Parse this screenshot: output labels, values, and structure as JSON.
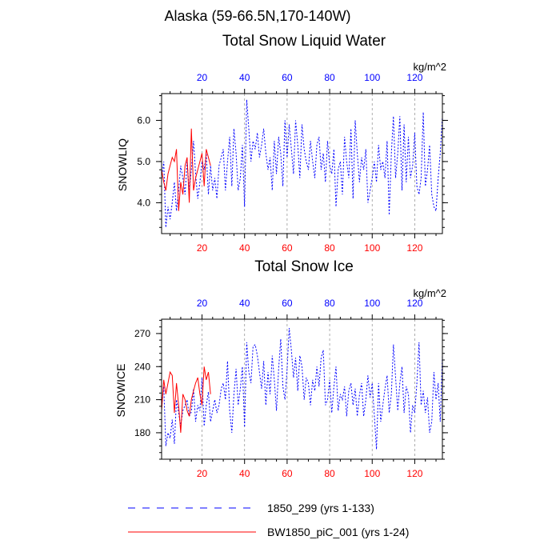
{
  "title": "Alaska (59-66.5N,170-140W)",
  "colors": {
    "control": "#0000ff",
    "experiment": "#ff0000",
    "grid": "#999999"
  },
  "legend": [
    {
      "label": "1850_299 (yrs 1-133)",
      "color": "#0000ff",
      "style": "dashed"
    },
    {
      "label": "BW1850_piC_001 (yrs 1-24)",
      "color": "#ff0000",
      "style": "solid"
    }
  ],
  "chart_data": [
    {
      "type": "line",
      "title": "Total Snow Liquid Water",
      "units": "kg/m^2",
      "ylabel": "SNOWLIQ",
      "xlim": [
        1,
        133
      ],
      "ylim": [
        3.25,
        6.65
      ],
      "yticks": [
        4.0,
        5.0,
        6.0
      ],
      "ytick_labels": [
        "4.0",
        "5.0",
        "6.0"
      ],
      "xticks": [
        20,
        40,
        60,
        80,
        100,
        120
      ],
      "grid": "vertical dashed at x ticks",
      "series": [
        {
          "name": "1850_299 (yrs 1-133)",
          "color": "#0000ff",
          "style": "dashed",
          "x_start": 1,
          "values": [
            4.6,
            5.0,
            3.4,
            3.9,
            3.6,
            4.0,
            4.5,
            3.8,
            4.3,
            4.9,
            4.6,
            4.2,
            5.0,
            4.3,
            4.8,
            5.5,
            4.7,
            4.1,
            4.5,
            5.0,
            4.8,
            5.2,
            4.2,
            4.9,
            4.3,
            4.6,
            4.1,
            4.9,
            5.1,
            5.3,
            4.3,
            5.0,
            5.6,
            4.4,
            5.8,
            5.2,
            4.3,
            4.6,
            5.4,
            3.9,
            6.5,
            5.8,
            5.0,
            5.5,
            5.3,
            5.7,
            5.1,
            5.4,
            5.8,
            5.2,
            4.8,
            5.1,
            4.3,
            5.5,
            4.7,
            5.6,
            5.2,
            4.4,
            6.0,
            5.1,
            5.9,
            5.3,
            4.7,
            6.0,
            5.4,
            4.6,
            5.9,
            5.3,
            5.0,
            4.8,
            5.5,
            5.0,
            4.6,
            5.4,
            5.6,
            4.8,
            5.2,
            4.5,
            5.5,
            4.9,
            4.7,
            5.3,
            3.9,
            4.8,
            5.0,
            4.2,
            5.6,
            5.0,
            4.6,
            5.8,
            4.1,
            6.0,
            5.2,
            4.5,
            5.1,
            4.8,
            5.3,
            4.0,
            4.3,
            4.6,
            5.0,
            4.5,
            5.4,
            4.8,
            5.0,
            4.6,
            5.5,
            3.7,
            5.2,
            6.1,
            4.6,
            5.2,
            6.1,
            4.3,
            5.9,
            4.5,
            5.6,
            4.6,
            4.9,
            5.7,
            4.4,
            4.2,
            4.6,
            6.2,
            4.4,
            4.8,
            5.4,
            4.2,
            3.9,
            3.8,
            4.6,
            5.2,
            6.1
          ]
        },
        {
          "name": "BW1850_piC_001 (yrs 1-24)",
          "color": "#ff0000",
          "style": "solid",
          "x_start": 1,
          "values": [
            4.8,
            4.5,
            4.3,
            4.7,
            4.9,
            5.1,
            5.0,
            5.3,
            3.8,
            4.5,
            4.2,
            4.9,
            5.1,
            4.0,
            5.8,
            4.3,
            4.6,
            4.8,
            5.0,
            5.2,
            4.4,
            5.3,
            5.1,
            4.9
          ]
        }
      ]
    },
    {
      "type": "line",
      "title": "Total Snow Ice",
      "units": "kg/m^2",
      "ylabel": "SNOWICE",
      "xlim": [
        1,
        133
      ],
      "ylim": [
        156,
        283
      ],
      "yticks": [
        180,
        210,
        240,
        270
      ],
      "ytick_labels": [
        "180",
        "210",
        "240",
        "270"
      ],
      "xticks": [
        20,
        40,
        60,
        80,
        100,
        120
      ],
      "grid": "vertical dashed at x ticks",
      "series": [
        {
          "name": "1850_299 (yrs 1-133)",
          "color": "#0000ff",
          "style": "dashed",
          "x_start": 1,
          "values": [
            205,
            222,
            168,
            180,
            175,
            192,
            170,
            210,
            198,
            186,
            200,
            205,
            210,
            195,
            199,
            220,
            190,
            205,
            200,
            230,
            186,
            205,
            217,
            190,
            200,
            210,
            198,
            205,
            220,
            225,
            210,
            245,
            200,
            180,
            215,
            238,
            205,
            220,
            240,
            185,
            262,
            235,
            225,
            258,
            260,
            250,
            235,
            220,
            245,
            205,
            235,
            215,
            250,
            228,
            200,
            238,
            265,
            222,
            210,
            238,
            275,
            255,
            230,
            248,
            218,
            250,
            240,
            210,
            230,
            225,
            205,
            228,
            218,
            240,
            222,
            248,
            255,
            205,
            210,
            228,
            198,
            222,
            240,
            200,
            215,
            210,
            222,
            195,
            218,
            225,
            205,
            220,
            195,
            214,
            225,
            195,
            210,
            232,
            212,
            225,
            196,
            165,
            225,
            190,
            205,
            220,
            232,
            198,
            215,
            260,
            230,
            200,
            225,
            240,
            198,
            222,
            215,
            180,
            205,
            198,
            225,
            262,
            205,
            218,
            198,
            212,
            180,
            190,
            235,
            210,
            225,
            190,
            250
          ]
        },
        {
          "name": "BW1850_piC_001 (yrs 1-24)",
          "color": "#ff0000",
          "style": "solid",
          "x_start": 1,
          "values": [
            200,
            228,
            215,
            225,
            235,
            232,
            198,
            225,
            205,
            180,
            215,
            210,
            200,
            195,
            210,
            218,
            225,
            230,
            215,
            205,
            240,
            228,
            235,
            215
          ]
        }
      ]
    }
  ]
}
